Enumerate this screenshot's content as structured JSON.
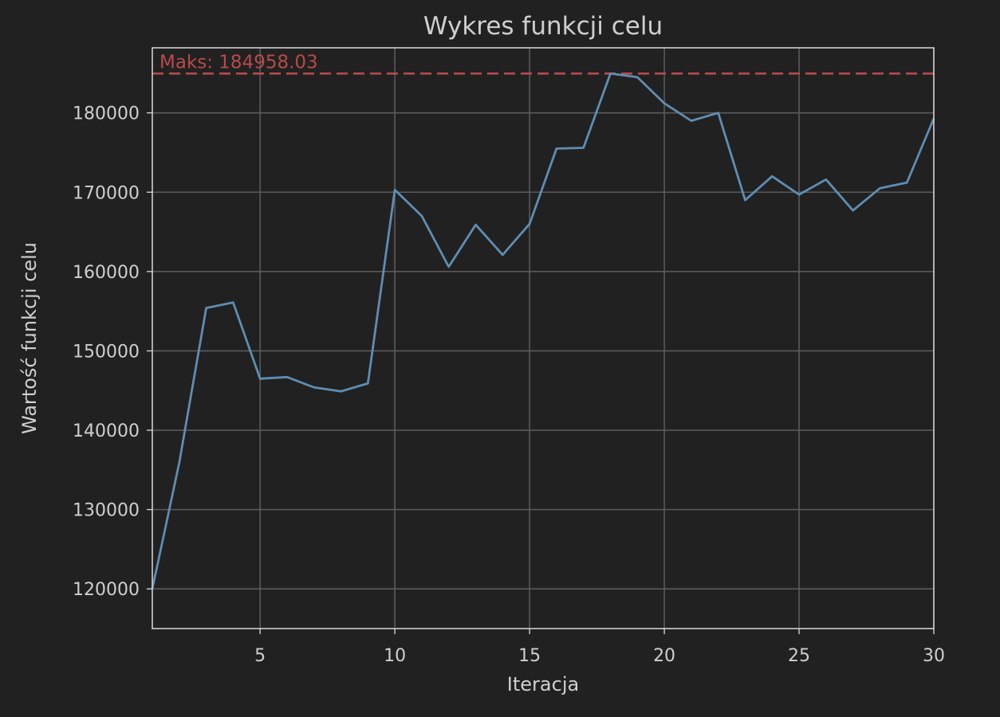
{
  "chart_data": {
    "type": "line",
    "title": "Wykres funkcji celu",
    "xlabel": "Iteracja",
    "ylabel": "Wartość funkcji celu",
    "xlim": [
      1,
      30
    ],
    "ylim": [
      115000,
      188200
    ],
    "xticks": [
      5,
      10,
      15,
      20,
      25,
      30
    ],
    "yticks": [
      120000,
      130000,
      140000,
      150000,
      160000,
      170000,
      180000
    ],
    "grid": true,
    "series": [
      {
        "color": "#5f8db2",
        "x": [
          1,
          2,
          3,
          4,
          5,
          6,
          7,
          8,
          9,
          10,
          11,
          12,
          13,
          14,
          15,
          16,
          17,
          18,
          19,
          20,
          21,
          22,
          23,
          24,
          25,
          26,
          27,
          28,
          29,
          30
        ],
        "values": [
          120000,
          135900,
          155400,
          156100,
          146500,
          146700,
          145400,
          144900,
          145900,
          170300,
          167000,
          160600,
          165900,
          162100,
          166000,
          175500,
          175600,
          184958.03,
          184500,
          181200,
          179000,
          180000,
          169000,
          172000,
          169700,
          171600,
          167700,
          170500,
          171200,
          179300
        ]
      }
    ],
    "max_line": {
      "value": 184958.03,
      "label": "Maks: 184958.03",
      "color": "#b84a4a",
      "style": "dashed"
    }
  }
}
